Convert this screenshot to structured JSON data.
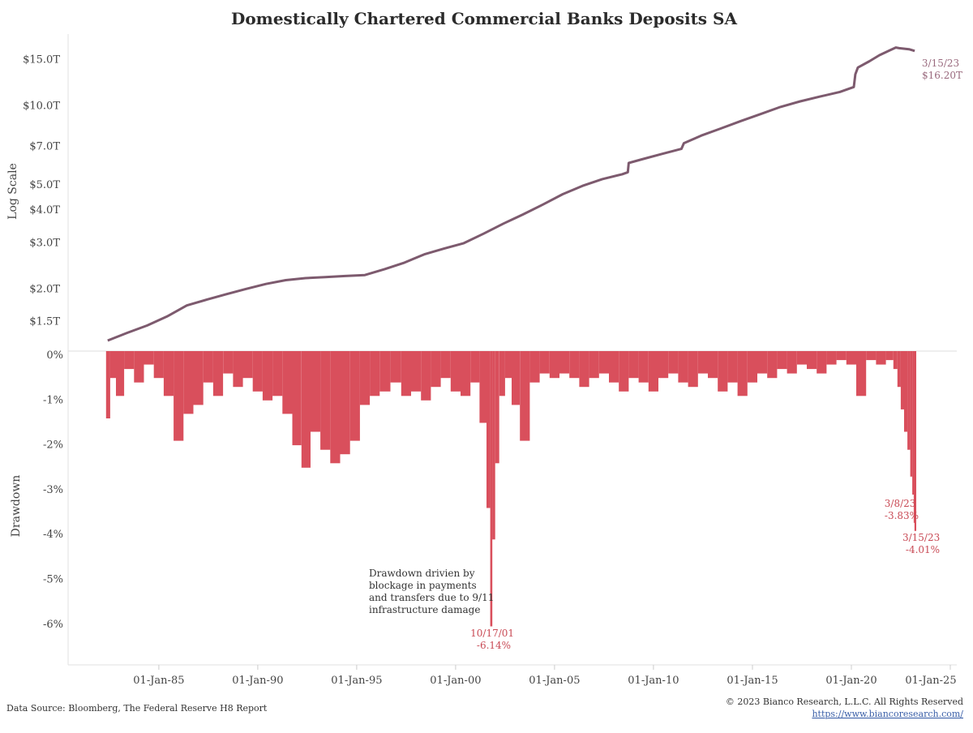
{
  "chart_data": [
    {
      "type": "line",
      "title": "Domestically Chartered Commercial Banks Deposits SA",
      "ylabel": "Log Scale",
      "yscale": "log",
      "yticks": [
        "$1.5T",
        "$2.0T",
        "$3.0T",
        "$4.0T",
        "$5.0T",
        "$7.0T",
        "$10.0T",
        "$15.0T"
      ],
      "ytick_values": [
        1.5,
        2.0,
        3.0,
        4.0,
        5.0,
        7.0,
        10.0,
        15.0
      ],
      "ylim": [
        1.2,
        17.5
      ],
      "series_color": "#7d5a6e",
      "series": [
        {
          "x": [
            "1982-06-01",
            "1983-06-01",
            "1984-06-01",
            "1985-06-01",
            "1986-06-01",
            "1987-06-01",
            "1988-06-01",
            "1989-06-01",
            "1990-06-01",
            "1991-06-01",
            "1992-06-01",
            "1993-06-01",
            "1994-06-01",
            "1995-06-01",
            "1996-06-01",
            "1997-06-01",
            "1998-06-01",
            "1999-06-01",
            "2000-06-01",
            "2001-06-01",
            "2002-06-01",
            "2003-06-01",
            "2004-06-01",
            "2005-06-01",
            "2006-06-01",
            "2007-06-01",
            "2008-06-01",
            "2008-09-15",
            "2008-10-01",
            "2009-06-01",
            "2010-06-01",
            "2011-06-01",
            "2011-07-15",
            "2012-06-01",
            "2013-06-01",
            "2014-06-01",
            "2015-06-01",
            "2016-06-01",
            "2017-06-01",
            "2018-06-01",
            "2019-06-01",
            "2020-02-15",
            "2020-03-15",
            "2020-05-01",
            "2020-12-01",
            "2021-06-01",
            "2021-12-01",
            "2022-04-01",
            "2022-06-01",
            "2022-12-01",
            "2023-03-15"
          ],
          "y": [
            1.27,
            1.36,
            1.45,
            1.57,
            1.73,
            1.82,
            1.91,
            2.0,
            2.09,
            2.16,
            2.2,
            2.22,
            2.24,
            2.26,
            2.38,
            2.52,
            2.71,
            2.85,
            2.99,
            3.25,
            3.55,
            3.85,
            4.2,
            4.6,
            4.95,
            5.25,
            5.48,
            5.58,
            6.05,
            6.25,
            6.55,
            6.85,
            7.2,
            7.7,
            8.2,
            8.75,
            9.3,
            9.9,
            10.4,
            10.85,
            11.3,
            11.8,
            13.2,
            14.0,
            14.8,
            15.6,
            16.25,
            16.7,
            16.6,
            16.45,
            16.2
          ]
        }
      ],
      "annotations": [
        {
          "text_lines": [
            "3/15/23",
            "$16.20T"
          ]
        }
      ]
    },
    {
      "type": "bar",
      "ylabel": "Drawdown",
      "yticks": [
        "0%",
        "-1%",
        "-2%",
        "-3%",
        "-4%",
        "-5%",
        "-6%"
      ],
      "ytick_values": [
        0,
        -1,
        -2,
        -3,
        -4,
        -5,
        -6
      ],
      "ylim": [
        -6.9,
        0
      ],
      "bar_color": "#d94f5c",
      "series": [
        {
          "name": "",
          "x": [
            "1982-06-01",
            "1982-09-01",
            "1983-01-01",
            "1983-07-01",
            "1984-01-01",
            "1984-07-01",
            "1985-01-01",
            "1985-07-01",
            "1986-01-01",
            "1986-07-01",
            "1987-01-01",
            "1987-07-01",
            "1988-01-01",
            "1988-07-01",
            "1989-01-01",
            "1989-07-01",
            "1990-01-01",
            "1990-07-01",
            "1991-01-01",
            "1991-07-01",
            "1992-01-01",
            "1992-06-01",
            "1992-12-01",
            "1993-06-01",
            "1993-12-01",
            "1994-06-01",
            "1994-12-01",
            "1995-06-01",
            "1995-12-01",
            "1996-06-01",
            "1997-01-01",
            "1997-07-01",
            "1998-01-01",
            "1998-07-01",
            "1999-01-01",
            "1999-07-01",
            "2000-01-01",
            "2000-07-01",
            "2001-01-01",
            "2001-06-01",
            "2001-09-15",
            "2001-10-17",
            "2001-12-01",
            "2002-02-01",
            "2002-05-01",
            "2002-09-01",
            "2003-01-01",
            "2003-07-01",
            "2004-01-01",
            "2004-07-01",
            "2005-01-01",
            "2005-07-01",
            "2006-01-01",
            "2006-07-01",
            "2007-01-01",
            "2007-07-01",
            "2008-01-01",
            "2008-07-01",
            "2009-01-01",
            "2009-07-01",
            "2010-01-01",
            "2010-07-01",
            "2011-01-01",
            "2011-07-01",
            "2012-01-01",
            "2012-07-01",
            "2013-01-01",
            "2013-07-01",
            "2014-01-01",
            "2014-07-01",
            "2015-01-01",
            "2015-07-01",
            "2016-01-01",
            "2016-07-01",
            "2017-01-01",
            "2017-07-01",
            "2018-01-01",
            "2018-07-01",
            "2019-01-01",
            "2019-07-01",
            "2020-01-01",
            "2020-07-01",
            "2021-01-01",
            "2021-07-01",
            "2022-01-01",
            "2022-04-01",
            "2022-06-01",
            "2022-08-01",
            "2022-10-01",
            "2022-12-01",
            "2023-01-15",
            "2023-02-15",
            "2023-03-08",
            "2023-03-15"
          ],
          "y": [
            -1.5,
            -0.6,
            -1.0,
            -0.4,
            -0.7,
            -0.3,
            -0.6,
            -1.0,
            -2.0,
            -1.4,
            -1.2,
            -0.7,
            -1.0,
            -0.5,
            -0.8,
            -0.6,
            -0.9,
            -1.1,
            -1.0,
            -1.4,
            -2.1,
            -2.6,
            -1.8,
            -2.2,
            -2.5,
            -2.3,
            -2.0,
            -1.2,
            -1.0,
            -0.9,
            -0.7,
            -1.0,
            -0.9,
            -1.1,
            -0.8,
            -0.6,
            -0.9,
            -1.0,
            -0.7,
            -1.6,
            -3.5,
            -6.14,
            -4.2,
            -2.5,
            -1.0,
            -0.6,
            -1.2,
            -2.0,
            -0.7,
            -0.5,
            -0.6,
            -0.5,
            -0.6,
            -0.8,
            -0.6,
            -0.5,
            -0.7,
            -0.9,
            -0.6,
            -0.7,
            -0.9,
            -0.6,
            -0.5,
            -0.7,
            -0.8,
            -0.5,
            -0.6,
            -0.9,
            -0.7,
            -1.0,
            -0.7,
            -0.5,
            -0.6,
            -0.4,
            -0.5,
            -0.3,
            -0.4,
            -0.5,
            -0.3,
            -0.2,
            -0.3,
            -1.0,
            -0.2,
            -0.3,
            -0.2,
            -0.4,
            -0.8,
            -1.3,
            -1.8,
            -2.2,
            -2.8,
            -3.2,
            -3.83,
            -4.01
          ]
        }
      ],
      "annotations": [
        {
          "text_lines": [
            "Drawdown drivien by",
            "blockage in payments",
            "and transfers due to 9/11",
            "infrastructure damage"
          ]
        },
        {
          "text_lines": [
            "10/17/01",
            "-6.14%"
          ]
        },
        {
          "text_lines": [
            "3/8/23",
            "-3.83%"
          ]
        },
        {
          "text_lines": [
            "3/15/23",
            "-4.01%"
          ]
        }
      ]
    }
  ],
  "xaxis": {
    "ticks": [
      "01-Jan-85",
      "01-Jan-90",
      "01-Jan-95",
      "01-Jan-00",
      "01-Jan-05",
      "01-Jan-10",
      "01-Jan-15",
      "01-Jan-20",
      "01-Jan-25"
    ],
    "tick_dates": [
      "1985-01-01",
      "1990-01-01",
      "1995-01-01",
      "2000-01-01",
      "2005-01-01",
      "2010-01-01",
      "2015-01-01",
      "2020-01-01",
      "2025-01-01"
    ],
    "range": [
      "1980-06-01",
      "2025-05-01"
    ]
  },
  "footer": {
    "source": "Data Source: Bloomberg, The Federal Reserve H8 Report",
    "copyright": "© 2023 Bianco Research, L.L.C. All Rights Reserved",
    "url": "https://www.biancoresearch.com/"
  }
}
